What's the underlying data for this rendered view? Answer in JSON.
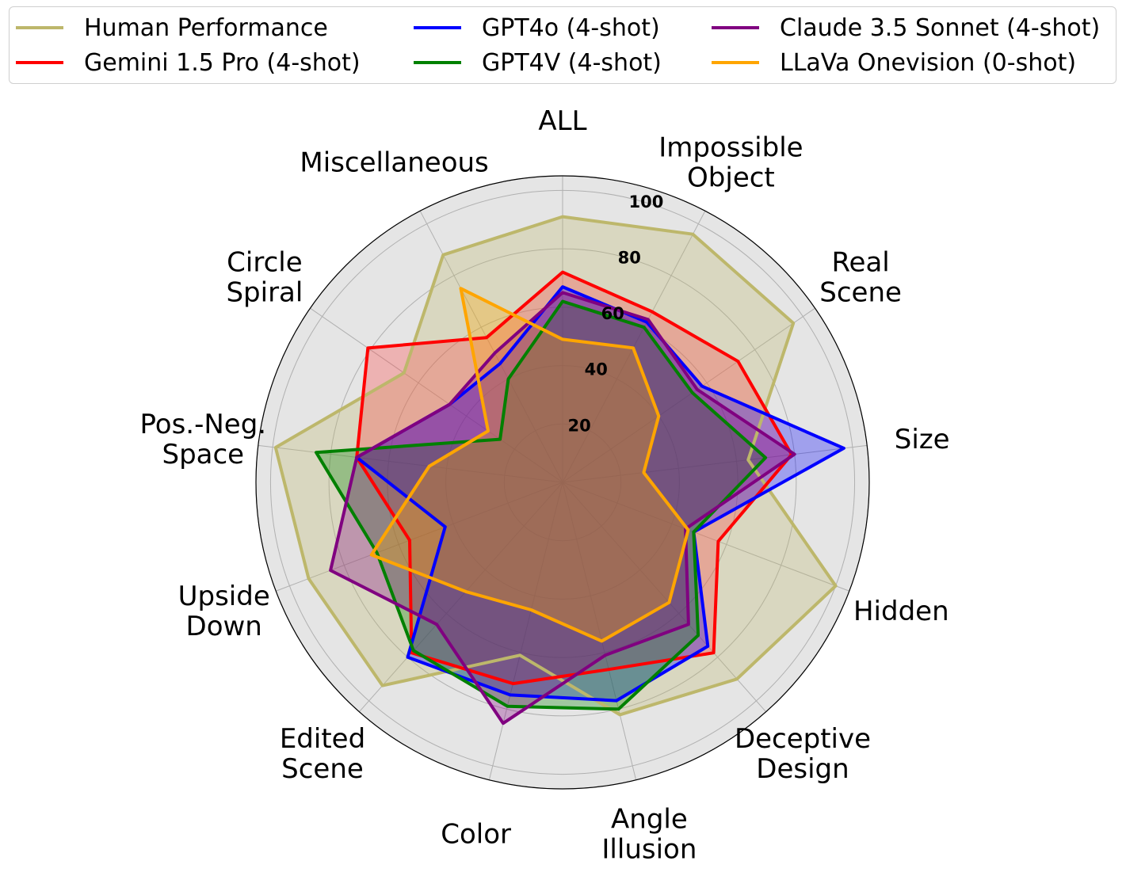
{
  "chart_data": {
    "type": "radar",
    "axes": [
      "ALL",
      "Impossible\nObject",
      "Real\nScene",
      "Size",
      "Hidden",
      "Deceptive\nDesign",
      "Angle\nIllusion",
      "Color",
      "Edited\nScene",
      "Upside\nDown",
      "Pos.-Neg.\nSpace",
      "Circle\nSpiral",
      "Miscellaneous"
    ],
    "rlim": [
      0,
      105
    ],
    "rticks": [
      20,
      40,
      60,
      80,
      100
    ],
    "grid": true,
    "legend_position": "top",
    "series": [
      {
        "name": "Human Performance",
        "color": "#bdb76b",
        "fill": "#bdb76b",
        "values": [
          91,
          96,
          96,
          64,
          100,
          90,
          82,
          61,
          93,
          93,
          99,
          66,
          88
        ]
      },
      {
        "name": "Gemini 1.5 Pro (4-shot)",
        "color": "#ff0000",
        "fill": "#ff3b3b",
        "values": [
          72,
          66,
          73,
          79,
          57,
          78,
          66,
          71,
          78,
          56,
          71,
          81,
          56
        ]
      },
      {
        "name": "GPT4o (4-shot)",
        "color": "#0000ff",
        "fill": "#0000ff",
        "values": [
          67,
          62,
          58,
          97,
          48,
          75,
          77,
          75,
          80,
          43,
          71,
          47,
          46
        ]
      },
      {
        "name": "GPT4V (4-shot)",
        "color": "#008000",
        "fill": "#008000",
        "values": [
          62,
          60,
          54,
          70,
          48,
          70,
          80,
          79,
          77,
          68,
          85,
          26,
          40
        ]
      },
      {
        "name": "Claude 3.5 Sonnet (4-shot)",
        "color": "#800080",
        "fill": "#800080",
        "values": [
          65,
          63,
          56,
          80,
          45,
          65,
          61,
          85,
          65,
          85,
          71,
          47,
          50
        ]
      },
      {
        "name": "LLaVa Onevision (0-shot)",
        "color": "#ffa500",
        "fill": "#ffa500",
        "values": [
          49,
          52,
          40,
          28,
          46,
          55,
          56,
          45,
          50,
          70,
          46,
          31,
          75
        ]
      }
    ]
  }
}
